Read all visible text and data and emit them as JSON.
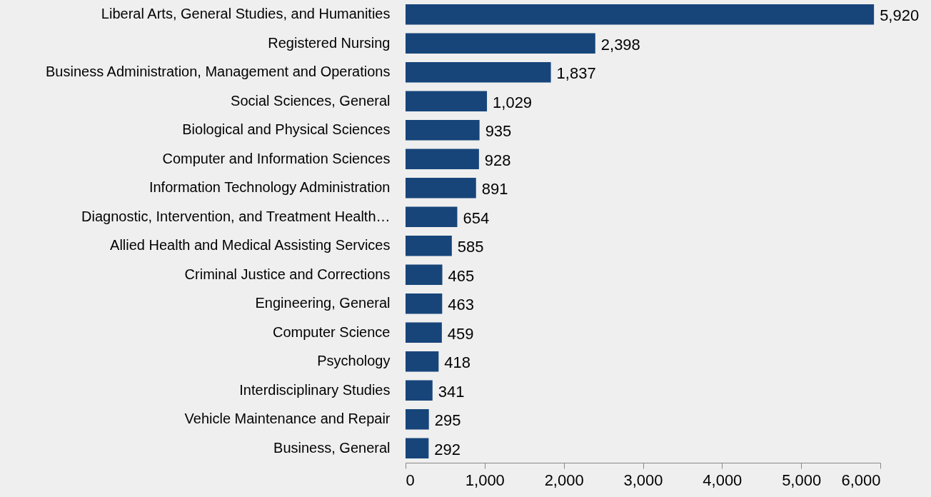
{
  "chart_data": {
    "type": "bar",
    "orientation": "horizontal",
    "categories": [
      "Liberal Arts, General Studies, and Humanities",
      "Registered Nursing",
      "Business Administration, Management and Operations",
      "Social Sciences, General",
      "Biological and Physical Sciences",
      "Computer and Information Sciences",
      "Information Technology Administration",
      "Diagnostic, Intervention, and Treatment Health…",
      "Allied Health and Medical Assisting Services",
      "Criminal Justice and Corrections",
      "Engineering, General",
      "Computer Science",
      "Psychology",
      "Interdisciplinary Studies",
      "Vehicle Maintenance and Repair",
      "Business, General"
    ],
    "values": [
      5920,
      2398,
      1837,
      1029,
      935,
      928,
      891,
      654,
      585,
      465,
      463,
      459,
      418,
      341,
      295,
      292
    ],
    "value_labels": [
      "5,920",
      "2,398",
      "1,837",
      "1,029",
      "935",
      "928",
      "891",
      "654",
      "585",
      "465",
      "463",
      "459",
      "418",
      "341",
      "295",
      "292"
    ],
    "color": "#17457a",
    "xlim": [
      0,
      6000
    ],
    "xticks": [
      0,
      {
        "value": 1000,
        "label": "1,000"
      },
      {
        "value": 2000,
        "label": "2,000"
      },
      {
        "value": 3000,
        "label": "3,000"
      },
      {
        "value": 4000,
        "label": "4,000"
      },
      {
        "value": 5000,
        "label": "5,000"
      },
      {
        "value": 6000,
        "label": "6,000"
      }
    ],
    "grid": false
  }
}
